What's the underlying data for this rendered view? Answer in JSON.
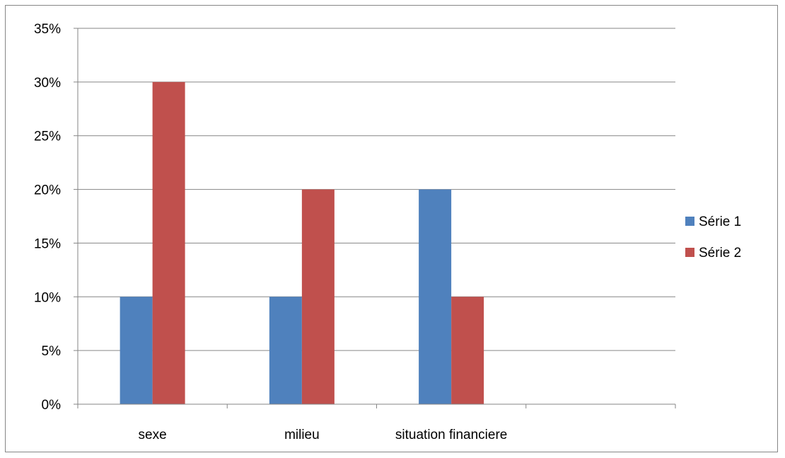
{
  "chart_data": {
    "type": "bar",
    "categories": [
      "sexe",
      "milieu",
      "situation financiere",
      ""
    ],
    "series": [
      {
        "name": "Série 1",
        "values": [
          0.1,
          0.1,
          0.2,
          null
        ],
        "color": "#4F81BD"
      },
      {
        "name": "Série 2",
        "values": [
          0.3,
          0.2,
          0.1,
          null
        ],
        "color": "#C0504D"
      }
    ],
    "ylim": [
      0,
      0.35
    ],
    "yticks": [
      0,
      0.05,
      0.1,
      0.15,
      0.2,
      0.25,
      0.3,
      0.35
    ],
    "ytick_labels": [
      "0%",
      "5%",
      "10%",
      "15%",
      "20%",
      "25%",
      "30%",
      "35%"
    ],
    "title": "",
    "xlabel": "",
    "ylabel": "",
    "grid": true,
    "legend_position": "right"
  }
}
